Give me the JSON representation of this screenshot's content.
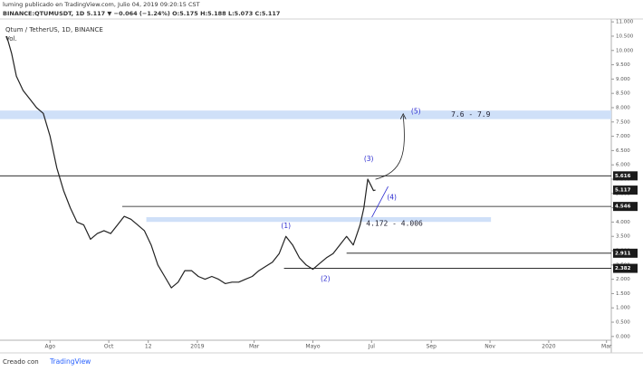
{
  "chart_data": {
    "type": "line",
    "header_line1": "luming publicado en TradingView.com, Julio 04, 2019 09:20:15 CST",
    "header_line2": "BINANCE:QTUMUSDT, 1D 5.117 ▼ −0.064 (−1.24%) O:5.175 H:5.188 L:5.073 C:5.117",
    "symbol": "Qtum / TetherUS, 1D, BINANCE",
    "volume_label": "Vol.",
    "footer_text": "Creado con",
    "footer_brand": "TradingView",
    "series": [
      {
        "name": "QTUMUSDT",
        "color": "#222222",
        "x": [
          -45,
          -40,
          -35,
          -28,
          -21,
          -14,
          -7,
          0,
          7,
          14,
          21,
          28,
          35,
          42,
          49,
          56,
          63,
          70,
          77,
          84,
          91,
          98,
          105,
          112,
          119,
          126,
          133,
          140,
          147,
          154,
          161,
          168,
          175,
          182,
          189,
          196,
          203,
          210,
          217,
          224,
          231,
          238,
          245,
          252,
          259,
          266,
          273,
          280,
          287,
          294,
          301,
          308,
          315,
          322,
          326,
          330,
          333,
          336,
          338
        ],
        "values": [
          10.5,
          9.9,
          9.1,
          8.6,
          8.3,
          8.0,
          7.8,
          7.0,
          5.9,
          5.1,
          4.5,
          4.0,
          3.9,
          3.4,
          3.6,
          3.7,
          3.6,
          3.9,
          4.2,
          4.1,
          3.9,
          3.7,
          3.2,
          2.5,
          2.1,
          1.7,
          1.9,
          2.3,
          2.3,
          2.1,
          2.0,
          2.1,
          2.0,
          1.85,
          1.9,
          1.9,
          2.0,
          2.1,
          2.3,
          2.45,
          2.6,
          2.9,
          3.5,
          3.2,
          2.75,
          2.5,
          2.35,
          2.55,
          2.75,
          2.9,
          3.2,
          3.5,
          3.2,
          3.9,
          4.5,
          5.5,
          5.3,
          5.1,
          5.117
        ]
      }
    ],
    "xlim": [
      -52,
      583
    ],
    "xticks": [
      {
        "value": 0,
        "label": "Ago"
      },
      {
        "value": 61,
        "label": "Oct"
      },
      {
        "value": 102,
        "label": "12"
      },
      {
        "value": 153,
        "label": "2019"
      },
      {
        "value": 212,
        "label": "Mar"
      },
      {
        "value": 273,
        "label": "Mayo"
      },
      {
        "value": 334,
        "label": "Jul"
      },
      {
        "value": 396,
        "label": "Sep"
      },
      {
        "value": 457,
        "label": "Nov"
      },
      {
        "value": 518,
        "label": "2020"
      },
      {
        "value": 578,
        "label": "Mar"
      }
    ],
    "ylim": [
      -0.1,
      11.1
    ],
    "yticks": [
      {
        "value": 0,
        "label": "0.000"
      },
      {
        "value": 0.5,
        "label": "0.500"
      },
      {
        "value": 1,
        "label": "1.000"
      },
      {
        "value": 1.5,
        "label": "1.500"
      },
      {
        "value": 2,
        "label": "2.000"
      },
      {
        "value": 2.5,
        "label": "2.500"
      },
      {
        "value": 3,
        "label": "3.000"
      },
      {
        "value": 3.5,
        "label": "3.500"
      },
      {
        "value": 4,
        "label": "4.000"
      },
      {
        "value": 4.5,
        "label": "4.500"
      },
      {
        "value": 5,
        "label": "5.000"
      },
      {
        "value": 5.5,
        "label": "5.500"
      },
      {
        "value": 6,
        "label": "6.000"
      },
      {
        "value": 6.5,
        "label": "6.500"
      },
      {
        "value": 7,
        "label": "7.000"
      },
      {
        "value": 7.5,
        "label": "7.500"
      },
      {
        "value": 8,
        "label": "8.000"
      },
      {
        "value": 8.5,
        "label": "8.500"
      },
      {
        "value": 9,
        "label": "9.000"
      },
      {
        "value": 9.5,
        "label": "9.500"
      },
      {
        "value": 10,
        "label": "10.000"
      },
      {
        "value": 10.5,
        "label": "10.500"
      },
      {
        "value": 11,
        "label": "11.000"
      }
    ],
    "zones": [
      {
        "low": 7.6,
        "high": 7.9,
        "from": -52,
        "to": 583,
        "label": "7.6 - 7.9"
      },
      {
        "low": 4.006,
        "high": 4.172,
        "from": 100,
        "to": 458,
        "label": "4.172 - 4.006"
      }
    ],
    "levels": [
      {
        "value": 5.616,
        "from": -52
      },
      {
        "value": 4.546,
        "from": 75
      },
      {
        "value": 2.911,
        "from": 308
      },
      {
        "value": 2.382,
        "from": 243
      }
    ],
    "last_price": 5.117,
    "waves": [
      {
        "label": "(1)",
        "x": 245,
        "y": 3.85
      },
      {
        "label": "(2)",
        "x": 286,
        "y": 2.0
      },
      {
        "label": "(3)",
        "x": 331,
        "y": 6.2
      },
      {
        "label": "(4)",
        "x": 355,
        "y": 4.85
      },
      {
        "label": "(5)",
        "x": 380,
        "y": 7.85
      }
    ],
    "zone_color": "#cfe0f8",
    "wave_color": "#2a2ad0"
  }
}
